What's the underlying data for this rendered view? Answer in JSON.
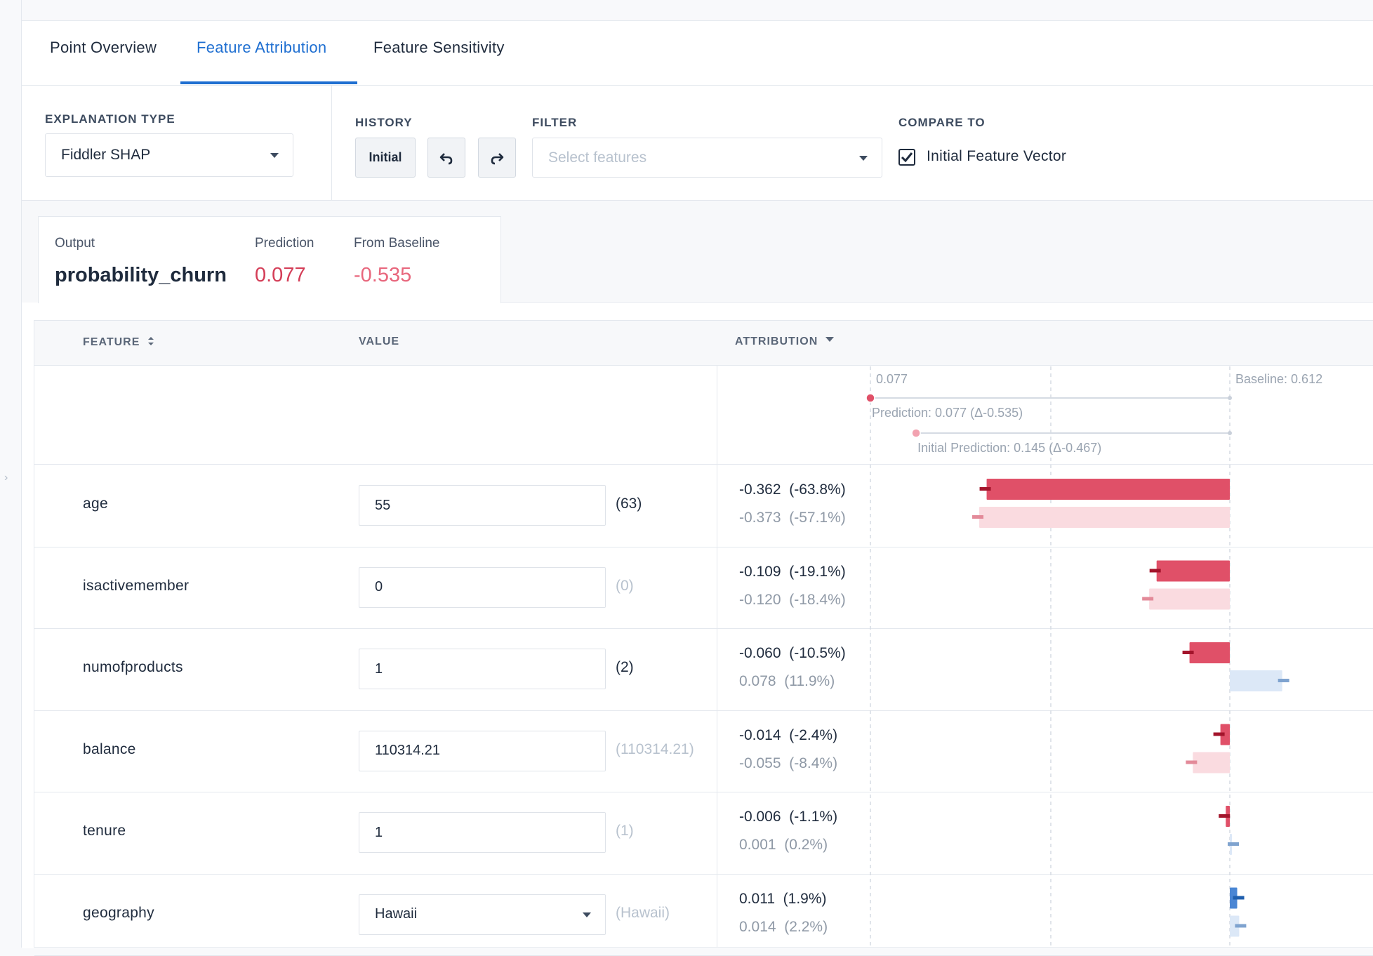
{
  "tabs": [
    {
      "label": "Point Overview"
    },
    {
      "label": "Feature Attribution"
    },
    {
      "label": "Feature Sensitivity"
    }
  ],
  "explanation_type": {
    "label": "EXPLANATION TYPE",
    "value": "Fiddler SHAP"
  },
  "history": {
    "label": "HISTORY",
    "initial_label": "Initial"
  },
  "filter": {
    "label": "FILTER",
    "placeholder": "Select features"
  },
  "compare_to": {
    "label": "COMPARE TO",
    "option": "Initial Feature Vector",
    "checked": true
  },
  "summary": {
    "output_label": "Output",
    "output_value": "probability_churn",
    "prediction_label": "Prediction",
    "prediction_value": "0.077",
    "baseline_label": "From Baseline",
    "baseline_value": "-0.535"
  },
  "table": {
    "headers": {
      "feature": "FEATURE",
      "value": "VALUE",
      "attribution": "ATTRIBUTION"
    }
  },
  "chart_header": {
    "prediction_tick": "0.077",
    "baseline_tick": "Baseline: 0.612",
    "prediction_caption": "Prediction: 0.077 (Δ-0.535)",
    "initial_caption": "Initial Prediction: 0.145 (Δ-0.467)"
  },
  "colors": {
    "negative": "#e05068",
    "negative_light": "#fadbe0",
    "negative_tick": "#a3142b",
    "positive": "#4a86d4",
    "positive_light": "#dce8f7",
    "accent": "#1f6fd1"
  },
  "rows": [
    {
      "feature": "age",
      "value": "55",
      "initial": "(63)",
      "initial_changed": true,
      "attr": "-0.362",
      "attr_pct": "(-63.8%)",
      "init_attr": "-0.373",
      "init_pct": "(-57.1%)",
      "cur": -0.362,
      "init": -0.373,
      "input": "text"
    },
    {
      "feature": "isactivemember",
      "value": "0",
      "initial": "(0)",
      "initial_changed": false,
      "attr": "-0.109",
      "attr_pct": "(-19.1%)",
      "init_attr": "-0.120",
      "init_pct": "(-18.4%)",
      "cur": -0.109,
      "init": -0.12,
      "input": "text"
    },
    {
      "feature": "numofproducts",
      "value": "1",
      "initial": "(2)",
      "initial_changed": true,
      "attr": "-0.060",
      "attr_pct": "(-10.5%)",
      "init_attr": "0.078",
      "init_pct": "(11.9%)",
      "cur": -0.06,
      "init": 0.078,
      "input": "text"
    },
    {
      "feature": "balance",
      "value": "110314.21",
      "initial": "(110314.21)",
      "initial_changed": false,
      "attr": "-0.014",
      "attr_pct": "(-2.4%)",
      "init_attr": "-0.055",
      "init_pct": "(-8.4%)",
      "cur": -0.014,
      "init": -0.055,
      "input": "text"
    },
    {
      "feature": "tenure",
      "value": "1",
      "initial": "(1)",
      "initial_changed": false,
      "attr": "-0.006",
      "attr_pct": "(-1.1%)",
      "init_attr": "0.001",
      "init_pct": "(0.2%)",
      "cur": -0.006,
      "init": 0.001,
      "input": "text"
    },
    {
      "feature": "geography",
      "value": "Hawaii",
      "initial": "(Hawaii)",
      "initial_changed": false,
      "attr": "0.011",
      "attr_pct": "(1.9%)",
      "init_attr": "0.014",
      "init_pct": "(2.2%)",
      "cur": 0.011,
      "init": 0.014,
      "input": "select"
    }
  ]
}
